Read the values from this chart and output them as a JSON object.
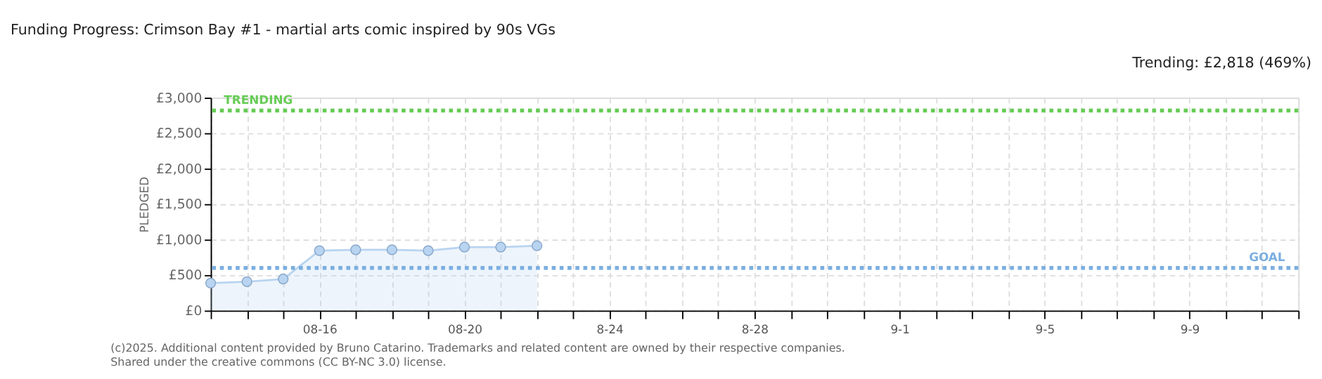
{
  "chart_data": {
    "type": "area",
    "title": "Funding Progress: Crimson Bay #1 - martial arts comic inspired by 90s VGs",
    "ylabel": "PLEDGED",
    "x": [
      "2025-08-13",
      "2025-08-14",
      "2025-08-15",
      "2025-08-16",
      "2025-08-17",
      "2025-08-18",
      "2025-08-19",
      "2025-08-20",
      "2025-08-21",
      "2025-08-22"
    ],
    "series": [
      {
        "color": "#b8d4f0",
        "values": [
          387,
          406,
          444,
          844,
          856,
          856,
          844,
          894,
          894,
          913
        ]
      }
    ],
    "marker": "circle",
    "grid": true,
    "xlim": [
      "2025-08-13",
      "2025-09-12"
    ],
    "xticks": [
      {
        "value": "2025-08-13",
        "label": null
      },
      {
        "value": "2025-08-14",
        "label": null
      },
      {
        "value": "2025-08-15",
        "label": null
      },
      {
        "value": "2025-08-16",
        "label": "08-16"
      },
      {
        "value": "2025-08-17",
        "label": null
      },
      {
        "value": "2025-08-18",
        "label": null
      },
      {
        "value": "2025-08-19",
        "label": null
      },
      {
        "value": "2025-08-20",
        "label": "08-20"
      },
      {
        "value": "2025-08-21",
        "label": null
      },
      {
        "value": "2025-08-22",
        "label": null
      },
      {
        "value": "2025-08-23",
        "label": null
      },
      {
        "value": "2025-08-24",
        "label": "8-24"
      },
      {
        "value": "2025-08-25",
        "label": null
      },
      {
        "value": "2025-08-26",
        "label": null
      },
      {
        "value": "2025-08-27",
        "label": null
      },
      {
        "value": "2025-08-28",
        "label": "8-28"
      },
      {
        "value": "2025-08-29",
        "label": null
      },
      {
        "value": "2025-08-30",
        "label": null
      },
      {
        "value": "2025-08-31",
        "label": null
      },
      {
        "value": "2025-09-01",
        "label": "9-1"
      },
      {
        "value": "2025-09-02",
        "label": null
      },
      {
        "value": "2025-09-03",
        "label": null
      },
      {
        "value": "2025-09-04",
        "label": null
      },
      {
        "value": "2025-09-05",
        "label": "9-5"
      },
      {
        "value": "2025-09-06",
        "label": null
      },
      {
        "value": "2025-09-07",
        "label": null
      },
      {
        "value": "2025-09-08",
        "label": null
      },
      {
        "value": "2025-09-09",
        "label": "9-9"
      },
      {
        "value": "2025-09-10",
        "label": null
      },
      {
        "value": "2025-09-11",
        "label": null
      },
      {
        "value": "2025-09-12",
        "label": null
      }
    ],
    "ylim": [
      0,
      3000
    ],
    "yticks": [
      {
        "value": 0,
        "label": "£0"
      },
      {
        "value": 500,
        "label": "£500"
      },
      {
        "value": 1000,
        "label": "£1,000"
      },
      {
        "value": 1500,
        "label": "£1,500"
      },
      {
        "value": 2000,
        "label": "£2,000"
      },
      {
        "value": 2500,
        "label": "£2,500"
      },
      {
        "value": 3000,
        "label": "£3,000"
      }
    ],
    "ref_lines": [
      {
        "axis": "y",
        "value": 2818,
        "label": "TRENDING",
        "color": "#66cc55",
        "line_style": "dotted"
      },
      {
        "axis": "y",
        "value": 600,
        "label": "GOAL",
        "color": "#7aaee0",
        "line_style": "dotted"
      }
    ],
    "annotations": [
      "Trending:  £2,818 (469%)",
      "(c)2025. Additional content provided by Bruno Catarino. Trademarks and related content are owned by their respective companies.",
      "Shared under the creative commons (CC BY-NC 3.0) license."
    ]
  }
}
